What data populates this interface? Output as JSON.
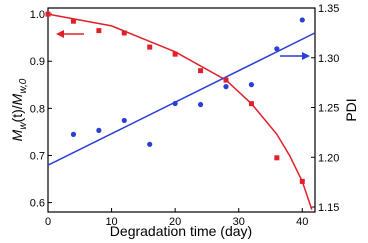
{
  "chart_data": {
    "type": "scatter",
    "x_label": "Degradation time (day)",
    "y_label_parts": [
      "M",
      "w",
      "(t)/",
      "M",
      "w,0"
    ],
    "y2_label": "PDI",
    "xlim": [
      0,
      42
    ],
    "xticks": [
      0,
      10,
      20,
      30,
      40
    ],
    "ylim": [
      0.58,
      1.013
    ],
    "yticks": [
      0.6,
      0.7,
      0.8,
      0.9,
      {
        "value": 1,
        "label": "1.0"
      }
    ],
    "y2lim": [
      1.145,
      1.35
    ],
    "y2ticks": [
      1.15,
      {
        "value": 1.2,
        "label": "1.20"
      },
      1.25,
      {
        "value": 1.3,
        "label": "1.30"
      },
      1.35
    ],
    "series": [
      {
        "color": "#e0202a",
        "marker": "square",
        "axis": "y",
        "x": [
          0,
          4,
          8,
          12,
          16,
          20,
          24,
          28,
          32,
          36,
          40
        ],
        "values": [
          1.0,
          0.985,
          0.965,
          0.96,
          0.93,
          0.915,
          0.88,
          0.86,
          0.81,
          0.695,
          0.645
        ]
      },
      {
        "color": "#2a3fd4",
        "marker": "circle",
        "axis": "y2",
        "x": [
          4,
          8,
          12,
          16,
          20,
          24,
          28,
          32,
          36,
          40
        ],
        "values": [
          1.223,
          1.227,
          1.237,
          1.213,
          1.254,
          1.253,
          1.271,
          1.273,
          1.309,
          1.338
        ]
      }
    ],
    "fit_lines": [
      {
        "color": "#e0202a",
        "axis": "y",
        "x": [
          0,
          10,
          20,
          28,
          32,
          36,
          38,
          40,
          41.5
        ],
        "values": [
          1.0,
          0.975,
          0.92,
          0.86,
          0.81,
          0.745,
          0.7,
          0.645,
          0.585
        ]
      },
      {
        "color": "#2a3fd4",
        "axis": "y2",
        "x": [
          0,
          42
        ],
        "values": [
          1.192,
          1.325
        ]
      }
    ]
  }
}
